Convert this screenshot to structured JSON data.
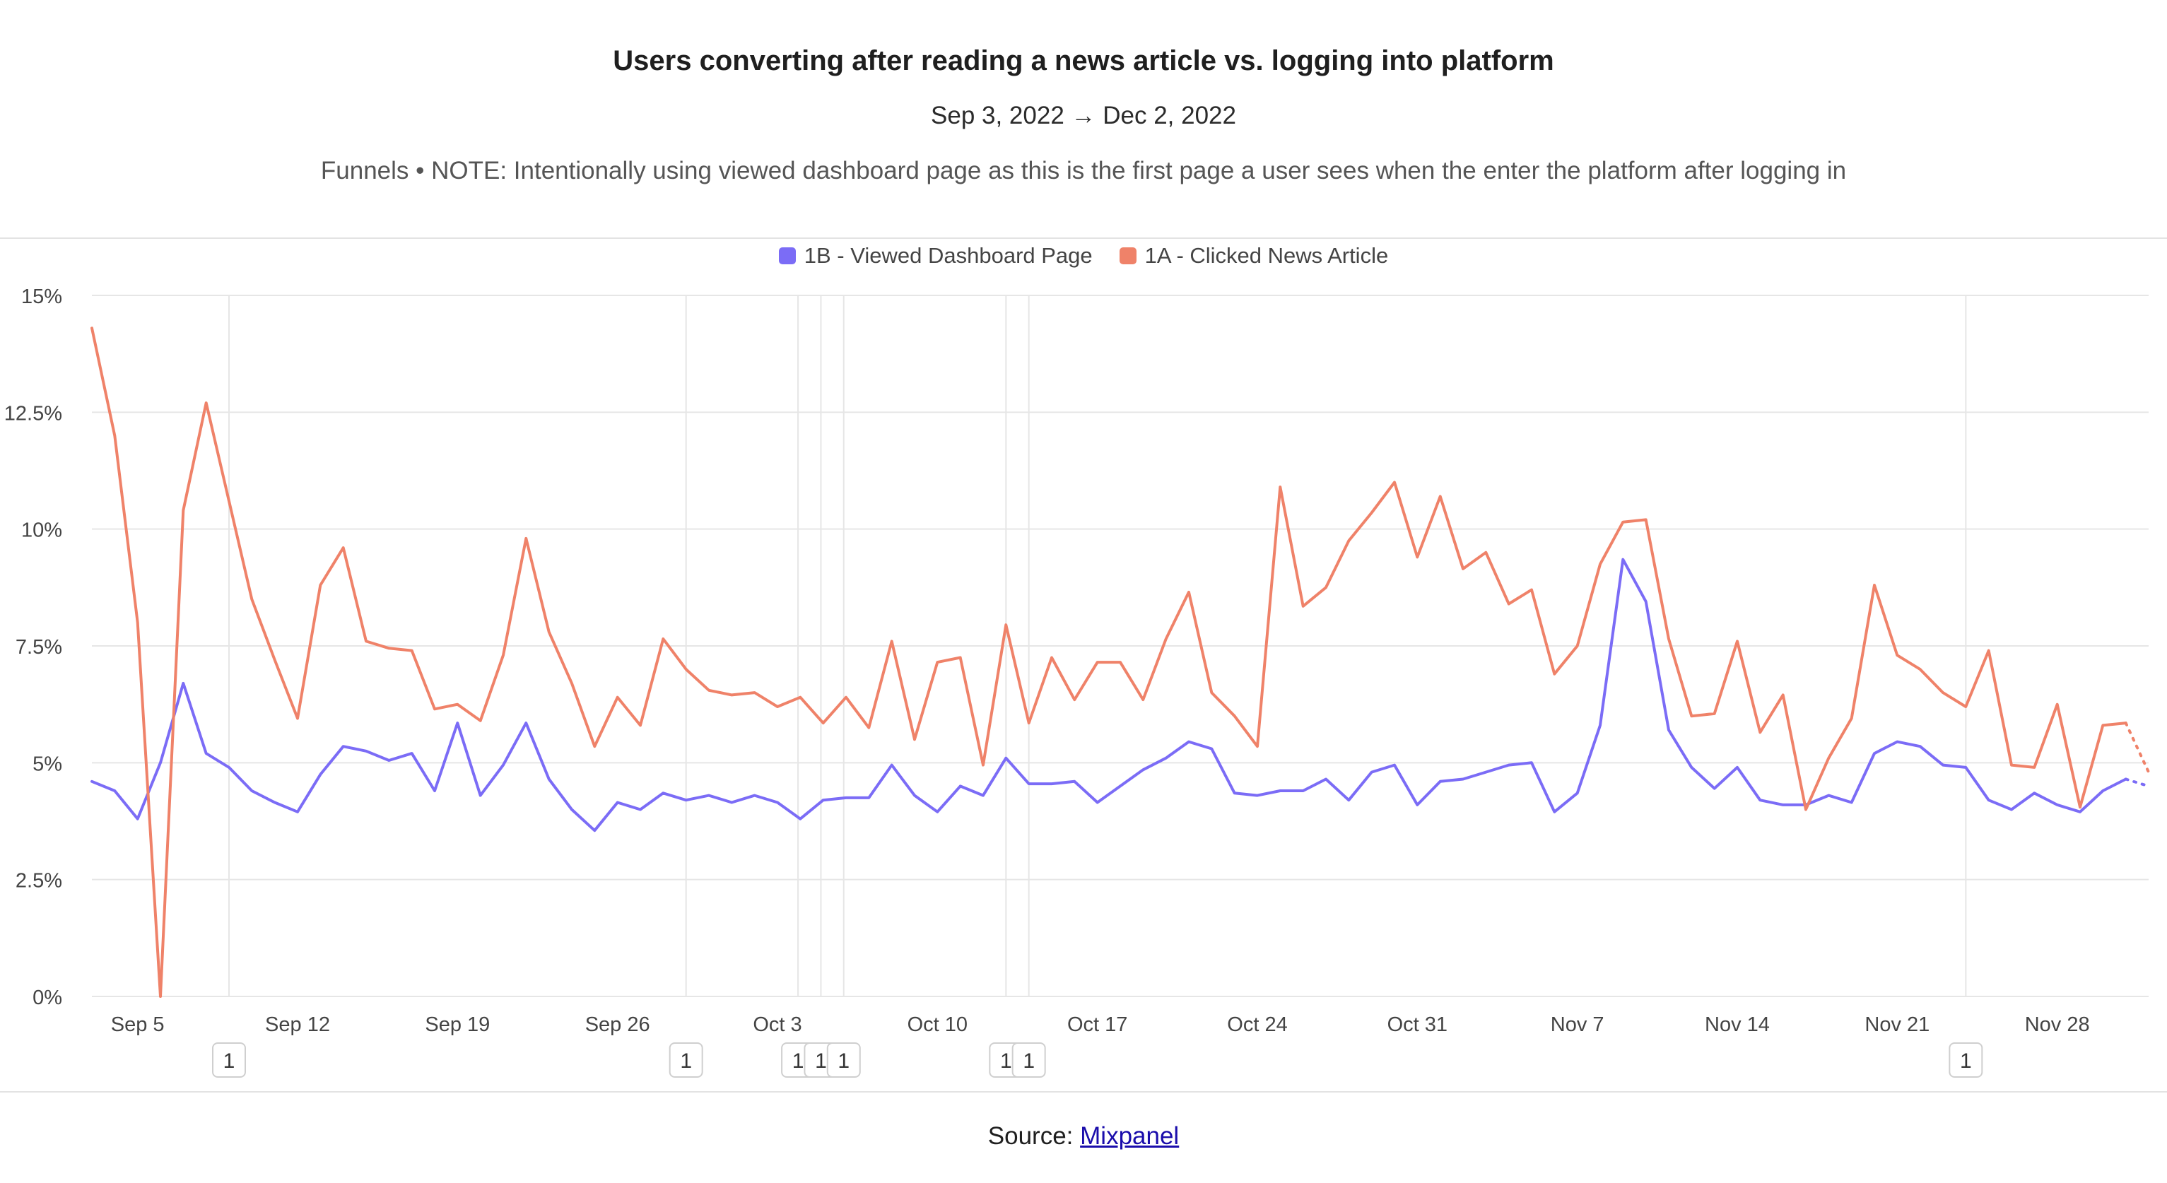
{
  "header": {
    "title": "Users converting after reading a news article vs. logging into platform",
    "date_range": "Sep 3, 2022 → Dec 2, 2022",
    "subtitle": "Funnels • NOTE: Intentionally using viewed dashboard page as this is the first page a user sees when the enter the platform after logging in"
  },
  "footer": {
    "source_label": "Source:",
    "source_link": "Mixpanel"
  },
  "colors": {
    "series_1b": "#7b6cf6",
    "series_1a": "#ef8269",
    "grid": "#e6e6e6",
    "axis_text": "#444444"
  },
  "chart_data": {
    "type": "line",
    "title": "Users converting after reading a news article vs. logging into platform",
    "xlabel": "",
    "ylabel": "",
    "ylim": [
      0,
      15
    ],
    "y_ticks": [
      0,
      2.5,
      5,
      7.5,
      10,
      12.5,
      15
    ],
    "y_tick_labels": [
      "0%",
      "2.5%",
      "5%",
      "7.5%",
      "10%",
      "12.5%",
      "15%"
    ],
    "x_start_date": "2022-09-03",
    "x_end_date": "2022-12-02",
    "x_tick_labels": [
      {
        "label": "Sep 5",
        "day": 2
      },
      {
        "label": "Sep 12",
        "day": 9
      },
      {
        "label": "Sep 19",
        "day": 16
      },
      {
        "label": "Sep 26",
        "day": 23
      },
      {
        "label": "Oct 3",
        "day": 30
      },
      {
        "label": "Oct 10",
        "day": 37
      },
      {
        "label": "Oct 17",
        "day": 44
      },
      {
        "label": "Oct 24",
        "day": 51
      },
      {
        "label": "Oct 31",
        "day": 58
      },
      {
        "label": "Nov 7",
        "day": 65
      },
      {
        "label": "Nov 14",
        "day": 72
      },
      {
        "label": "Nov 21",
        "day": 79
      },
      {
        "label": "Nov 28",
        "day": 86
      }
    ],
    "legend": [
      "1B - Viewed Dashboard Page",
      "1A - Clicked News Article"
    ],
    "legend_position": "top-center",
    "annotations": [
      {
        "day": 6,
        "label": "1"
      },
      {
        "day": 26,
        "label": "1"
      },
      {
        "day": 30.9,
        "label": "1"
      },
      {
        "day": 31.9,
        "label": "1"
      },
      {
        "day": 32.9,
        "label": "1"
      },
      {
        "day": 40,
        "label": "1"
      },
      {
        "day": 41,
        "label": "1"
      },
      {
        "day": 82,
        "label": "1"
      }
    ],
    "series": [
      {
        "name": "1B - Viewed Dashboard Page",
        "values": [
          4.6,
          4.4,
          3.8,
          5.0,
          6.7,
          5.2,
          4.9,
          4.4,
          4.15,
          3.95,
          4.75,
          5.35,
          5.25,
          5.05,
          5.2,
          4.4,
          5.85,
          4.3,
          4.95,
          5.85,
          4.65,
          4.0,
          3.55,
          4.15,
          4.0,
          4.35,
          4.2,
          4.3,
          4.15,
          4.3,
          4.15,
          3.8,
          4.2,
          4.25,
          4.25,
          4.95,
          4.3,
          3.95,
          4.5,
          4.3,
          5.1,
          4.55,
          4.55,
          4.6,
          4.15,
          4.5,
          4.85,
          5.1,
          5.45,
          5.3,
          4.35,
          4.3,
          4.4,
          4.4,
          4.65,
          4.2,
          4.8,
          4.95,
          4.1,
          4.6,
          4.65,
          4.8,
          4.95,
          5.0,
          3.95,
          4.35,
          5.8,
          9.35,
          8.45,
          5.7,
          4.9,
          4.45,
          4.9,
          4.2,
          4.1,
          4.1,
          4.3,
          4.15,
          5.2,
          5.45,
          5.35,
          4.95,
          4.9,
          4.2,
          4.0,
          4.35,
          4.1,
          3.95,
          4.4,
          4.65
        ],
        "partial_values": [
          4.65,
          4.5
        ]
      },
      {
        "name": "1A - Clicked News Article",
        "values": [
          14.3,
          12.0,
          8.0,
          0.0,
          10.4,
          12.7,
          10.6,
          8.5,
          7.2,
          5.95,
          8.8,
          9.6,
          7.6,
          7.45,
          7.4,
          6.15,
          6.25,
          5.9,
          7.3,
          9.8,
          7.8,
          6.7,
          5.35,
          6.4,
          5.8,
          7.65,
          7.0,
          6.55,
          6.45,
          6.5,
          6.2,
          6.4,
          5.85,
          6.4,
          5.75,
          7.6,
          5.5,
          7.15,
          7.25,
          4.95,
          7.95,
          5.85,
          7.25,
          6.35,
          7.15,
          7.15,
          6.35,
          7.65,
          8.65,
          6.5,
          6.0,
          5.35,
          10.9,
          8.35,
          8.75,
          9.75,
          10.35,
          11.0,
          9.4,
          10.7,
          9.15,
          9.5,
          8.4,
          8.7,
          6.9,
          7.5,
          9.25,
          10.15,
          10.2,
          7.65,
          6.0,
          6.05,
          7.6,
          5.65,
          6.45,
          4.0,
          5.1,
          5.95,
          8.8,
          7.3,
          7.0,
          6.5,
          6.2,
          7.4,
          4.95,
          4.9,
          6.25,
          4.05,
          5.8,
          5.85
        ],
        "partial_values": [
          5.85,
          4.8
        ]
      }
    ]
  }
}
